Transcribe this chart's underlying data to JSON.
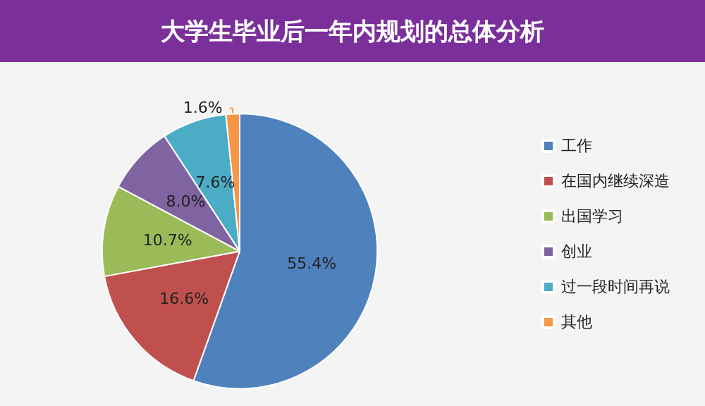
{
  "chart_data": {
    "type": "pie",
    "title": "大学生毕业后一年内规划的总体分析",
    "categories": [
      "工作",
      "在国内继续深造",
      "出国学习",
      "创业",
      "过一段时间再说",
      "其他"
    ],
    "values": [
      55.4,
      16.6,
      10.7,
      8.0,
      7.6,
      1.6
    ],
    "value_labels": [
      "55.4%",
      "16.6%",
      "10.7%",
      "8.0%",
      "7.6%",
      "1.6%"
    ],
    "colors": [
      "#4f81bd",
      "#c0504d",
      "#9bbb59",
      "#8064a2",
      "#4bacc6",
      "#f79646"
    ],
    "legend": "right"
  }
}
